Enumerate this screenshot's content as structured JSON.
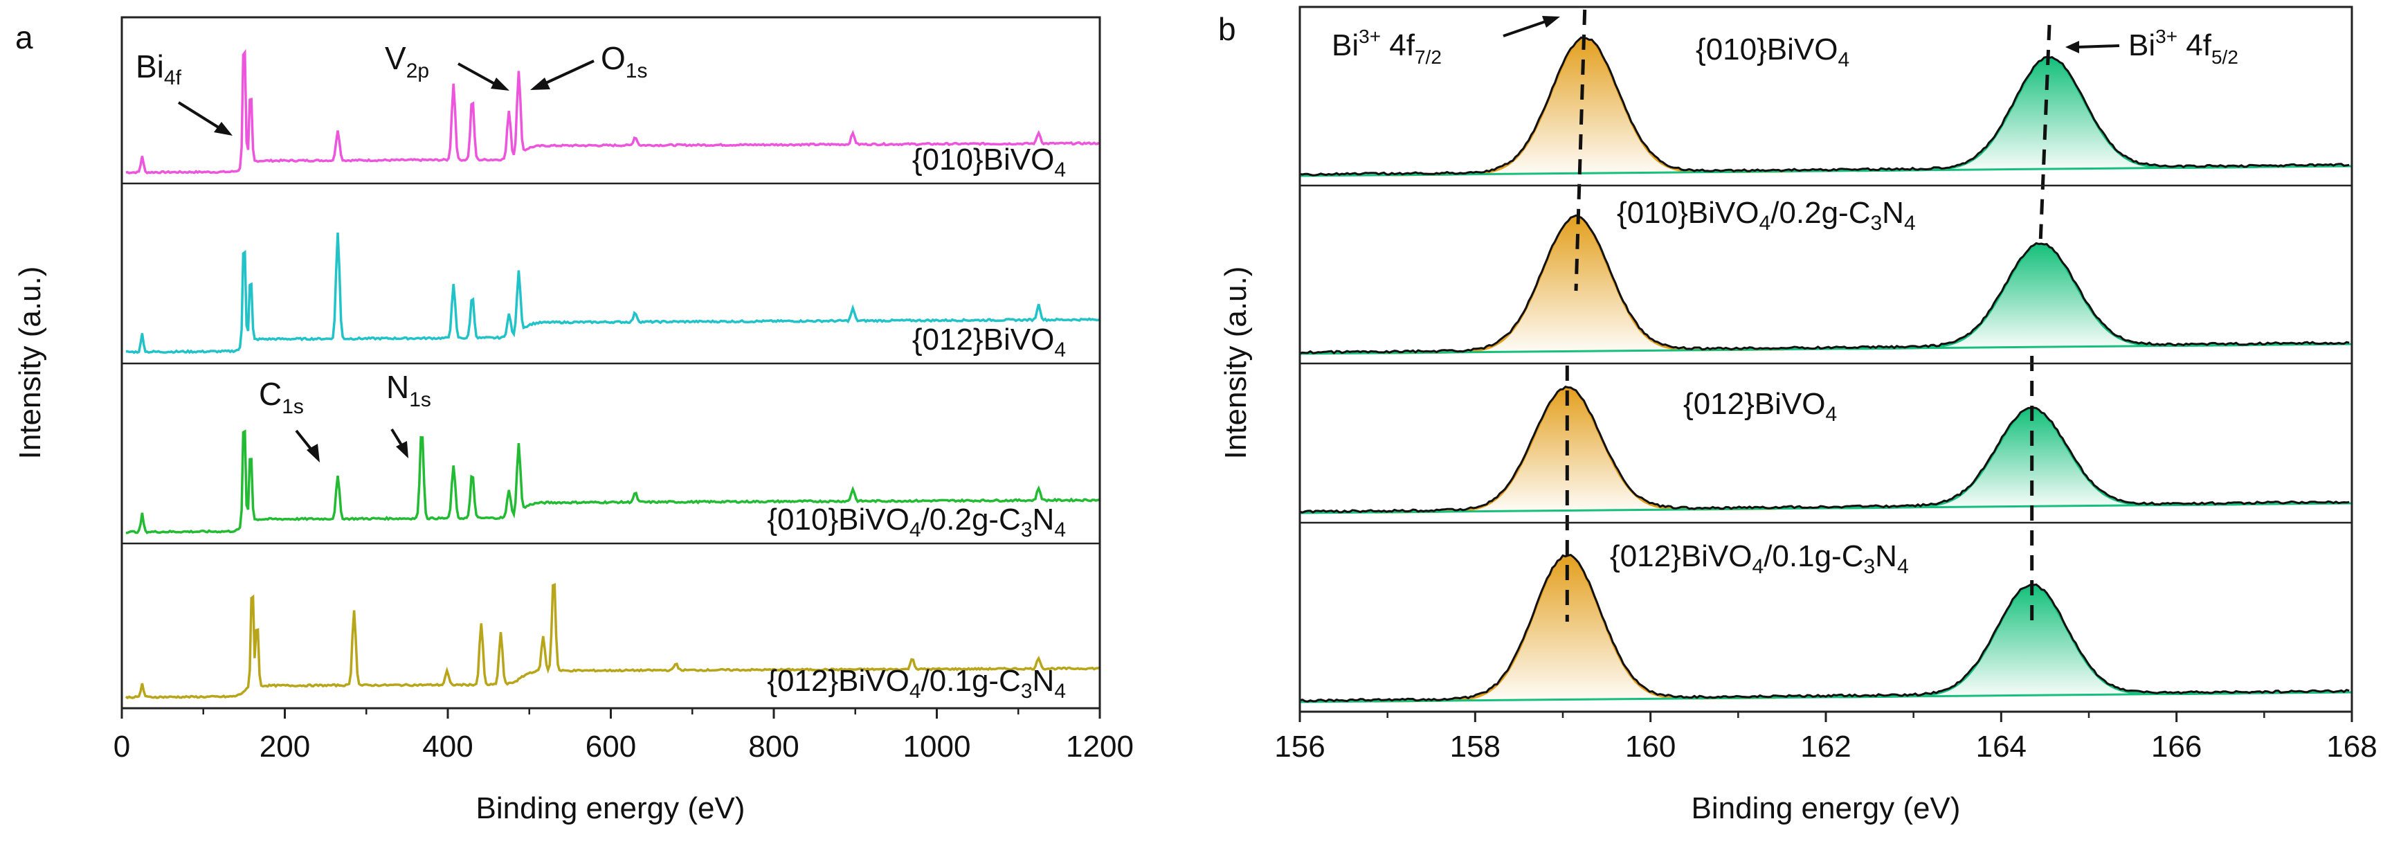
{
  "chart_data": [
    {
      "type": "line",
      "panel_label": "a",
      "xlabel": "Binding energy (eV)",
      "ylabel": "Intensity (a.u.)",
      "xlim": [
        0,
        1200
      ],
      "xticks": [
        0,
        200,
        400,
        600,
        800,
        1000,
        1200
      ],
      "grid": false,
      "series": [
        {
          "name": "{010}BiVO4",
          "label_main": "{010}BiVO",
          "label_sub": "4",
          "color": "#ee55dd",
          "baseline": 0.03,
          "base_step": 0.4,
          "tail": 0.5,
          "peaks": [
            [
              25,
              0.12
            ],
            [
              150,
              1.0
            ],
            [
              158,
              0.55
            ],
            [
              265,
              0.22
            ],
            [
              407,
              0.55
            ],
            [
              430,
              0.45
            ],
            [
              475,
              0.35
            ],
            [
              487,
              0.6
            ],
            [
              630,
              0.06
            ],
            [
              897,
              0.08
            ],
            [
              1125,
              0.08
            ]
          ]
        },
        {
          "name": "{012}BiVO4",
          "label_main": "{012}BiVO",
          "label_sub": "4",
          "color": "#22c3c8",
          "baseline": 0.03,
          "base_step": 0.4,
          "tail": 0.55,
          "peaks": [
            [
              25,
              0.12
            ],
            [
              150,
              0.75
            ],
            [
              158,
              0.45
            ],
            [
              265,
              0.7
            ],
            [
              407,
              0.35
            ],
            [
              430,
              0.28
            ],
            [
              475,
              0.15
            ],
            [
              487,
              0.4
            ],
            [
              630,
              0.06
            ],
            [
              897,
              0.08
            ],
            [
              1125,
              0.1
            ]
          ]
        },
        {
          "name": "{010}BiVO4/0.2g-C3N4",
          "label_main": "{010}BiVO",
          "label_sub": "4",
          "label_tail": "/0.2g-C",
          "label_sub2": "3",
          "label_tail2": "N",
          "label_sub3": "4",
          "color": "#22bb33",
          "baseline": 0.03,
          "base_step": 0.4,
          "tail": 0.5,
          "peaks": [
            [
              25,
              0.12
            ],
            [
              150,
              0.75
            ],
            [
              158,
              0.5
            ],
            [
              265,
              0.28
            ],
            [
              368,
              0.6
            ],
            [
              407,
              0.35
            ],
            [
              430,
              0.3
            ],
            [
              475,
              0.18
            ],
            [
              487,
              0.45
            ],
            [
              630,
              0.06
            ],
            [
              897,
              0.08
            ],
            [
              1125,
              0.08
            ]
          ]
        },
        {
          "name": "{012}BiVO4/0.1g-C3N4",
          "label_main": "{012}BiVO",
          "label_sub": "4",
          "label_tail": "/0.1g-C",
          "label_sub2": "3",
          "label_tail2": "N",
          "label_sub3": "4",
          "color": "#b8a51a",
          "baseline": 0.03,
          "base_step": 0.4,
          "tail": 0.5,
          "peaks": [
            [
              25,
              0.1
            ],
            [
              160,
              0.8
            ],
            [
              166,
              0.5
            ],
            [
              285,
              0.55
            ],
            [
              399,
              0.1
            ],
            [
              441,
              0.45
            ],
            [
              465,
              0.38
            ],
            [
              517,
              0.25
            ],
            [
              530,
              0.7
            ],
            [
              680,
              0.05
            ],
            [
              970,
              0.08
            ],
            [
              1125,
              0.08
            ]
          ]
        }
      ],
      "annotations": [
        {
          "main": "Bi",
          "sub": "4f"
        },
        {
          "main": "V",
          "sub": "2p"
        },
        {
          "main": "O",
          "sub": "1s"
        },
        {
          "main": "C",
          "sub": "1s"
        },
        {
          "main": "N",
          "sub": "1s"
        }
      ]
    },
    {
      "type": "area",
      "panel_label": "b",
      "xlabel": "Binding energy (eV)",
      "ylabel": "Intensity (a.u.)",
      "xlim": [
        156,
        168
      ],
      "xticks": [
        156,
        158,
        160,
        162,
        164,
        166,
        168
      ],
      "grid": false,
      "fill_colors": {
        "f72": "#e3a020",
        "f52": "#16c07c"
      },
      "series": [
        {
          "name": "{010}BiVO4",
          "label_main": "{010}BiVO",
          "label_sub": "4",
          "peak_72": 159.25,
          "peak_52": 164.55,
          "amp_72": 0.85,
          "amp_52": 0.7
        },
        {
          "name": "{010}BiVO4/0.2g-C3N4",
          "label_main": "{010}BiVO",
          "label_sub": "4",
          "label_tail": "/0.2g-C",
          "label_sub2": "3",
          "label_tail2": "N",
          "label_sub3": "4",
          "peak_72": 159.15,
          "peak_52": 164.45,
          "amp_72": 0.85,
          "amp_52": 0.65
        },
        {
          "name": "{012}BiVO4",
          "label_main": "{012}BiVO",
          "label_sub": "4",
          "peak_72": 159.05,
          "peak_52": 164.35,
          "amp_72": 0.88,
          "amp_52": 0.7
        },
        {
          "name": "{012}BiVO4/0.1g-C3N4",
          "label_main": "{012}BiVO",
          "label_sub": "4",
          "label_tail": "/0.1g-C",
          "label_sub2": "3",
          "label_tail2": "N",
          "label_sub3": "4",
          "peak_72": 159.05,
          "peak_52": 164.35,
          "amp_72": 0.85,
          "amp_52": 0.65
        }
      ],
      "annotations": [
        {
          "main": "Bi",
          "sup": "3+",
          "mid": " 4f",
          "sub": "7/2"
        },
        {
          "main": "Bi",
          "sup": "3+",
          "mid": " 4f",
          "sub": "5/2"
        }
      ]
    }
  ]
}
